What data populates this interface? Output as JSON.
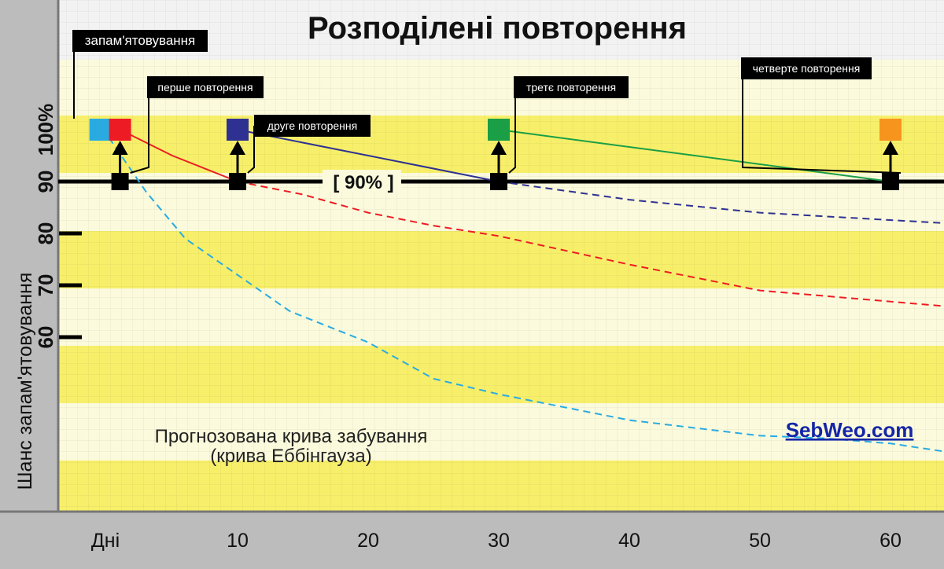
{
  "chart_data": {
    "type": "line",
    "title": "Розподілені повторення",
    "ylabel": "Шанс запам'ятовування",
    "xlabel": "Дні",
    "x_ticks": [
      10,
      20,
      30,
      40,
      50,
      60
    ],
    "y_ticks": [
      "100%",
      "90",
      "80",
      "70",
      "60"
    ],
    "threshold_label": "[ 90% ]",
    "threshold_value": 90,
    "series": [
      {
        "role": "forgetting",
        "color": "#29abe2",
        "dashed": true,
        "points": [
          [
            -0.5,
            100
          ],
          [
            0,
            99
          ],
          [
            3,
            88
          ],
          [
            6,
            79
          ],
          [
            10,
            72
          ],
          [
            14,
            65
          ],
          [
            20,
            59
          ],
          [
            25,
            52
          ],
          [
            30,
            49
          ],
          [
            40,
            44
          ],
          [
            50,
            41
          ],
          [
            55,
            40.5
          ],
          [
            60,
            39.5
          ],
          [
            64,
            38
          ]
        ]
      },
      {
        "role": "after-1st-review",
        "color": "#ed1c24",
        "dashed": false,
        "points": [
          [
            1,
            100
          ],
          [
            5,
            95
          ],
          [
            10,
            90
          ]
        ]
      },
      {
        "role": "after-1st-review",
        "color": "#ed1c24",
        "dashed": true,
        "points": [
          [
            10,
            90
          ],
          [
            15,
            87.5
          ],
          [
            20,
            84
          ],
          [
            25,
            81.5
          ],
          [
            30,
            79.5
          ],
          [
            40,
            74
          ],
          [
            50,
            69
          ],
          [
            64,
            66
          ]
        ]
      },
      {
        "role": "after-2nd-review",
        "color": "#2e3192",
        "dashed": false,
        "points": [
          [
            10,
            100
          ],
          [
            30,
            90
          ]
        ]
      },
      {
        "role": "after-2nd-review",
        "color": "#2e3192",
        "dashed": true,
        "points": [
          [
            30,
            90
          ],
          [
            40,
            86.5
          ],
          [
            50,
            84
          ],
          [
            64,
            82
          ]
        ]
      },
      {
        "role": "after-3rd-review",
        "color": "#1a9e46",
        "dashed": false,
        "points": [
          [
            30,
            100
          ],
          [
            60,
            90
          ]
        ]
      }
    ],
    "events": [
      {
        "label": "запам'ятовування",
        "day": -0.5,
        "color": "#29abe2"
      },
      {
        "label": "перше повторення",
        "day": 1,
        "color": "#ed1c24"
      },
      {
        "label": "друге повторення",
        "day": 10,
        "color": "#2e3192"
      },
      {
        "label": "третє повторення",
        "day": 30,
        "color": "#1a9e46"
      },
      {
        "label": "четверте повторення",
        "day": 60,
        "color": "#f7941d"
      }
    ],
    "annotation_line1": "Прогнозована крива забування",
    "annotation_line2": "(крива Еббінгауза)",
    "watermark": "SebWeo.com"
  }
}
